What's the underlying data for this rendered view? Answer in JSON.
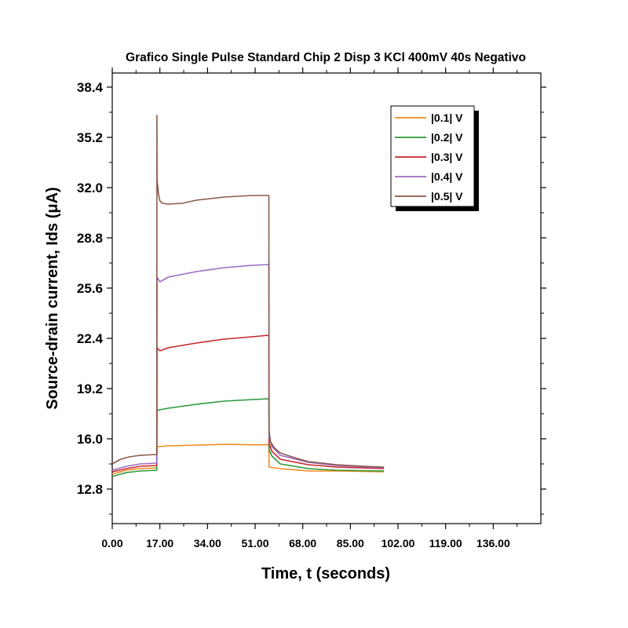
{
  "chart_data": {
    "type": "line",
    "title": "Grafico Single Pulse Standard Chip 2 Disp 3 KCl 400mV 40s Negativo",
    "xlabel": "Time, t (seconds)",
    "ylabel": "Source-drain current, Ids (μA)",
    "xlim": [
      0,
      153
    ],
    "ylim": [
      10.6,
      39.3
    ],
    "x_ticks": [
      0,
      17,
      34,
      51,
      68,
      85,
      102,
      119,
      136
    ],
    "x_tick_labels": [
      "0.00",
      "17.00",
      "34.00",
      "51.00",
      "68.00",
      "85.00",
      "102.00",
      "119.00",
      "136.00"
    ],
    "y_ticks": [
      12.8,
      16.0,
      19.2,
      22.4,
      25.6,
      28.8,
      32.0,
      35.2,
      38.4
    ],
    "y_tick_labels": [
      "12.8",
      "16.0",
      "19.2",
      "22.4",
      "25.6",
      "28.8",
      "32.0",
      "35.2",
      "38.4"
    ],
    "legend_position": "top-right",
    "grid": false,
    "series": [
      {
        "name": "|0.1| V",
        "color": "#f28a1c",
        "x": [
          0,
          5,
          10,
          15.9,
          16.0,
          20,
          30,
          40,
          50,
          55.9,
          56.0,
          60,
          70,
          80,
          97
        ],
        "y": [
          13.75,
          14.0,
          14.1,
          14.15,
          15.5,
          15.55,
          15.6,
          15.65,
          15.62,
          15.62,
          14.2,
          14.1,
          13.95,
          13.95,
          13.9
        ]
      },
      {
        "name": "|0.2| V",
        "color": "#2a9a3a",
        "x": [
          0,
          5,
          10,
          15.9,
          16.0,
          17,
          20,
          30,
          40,
          50,
          55.9,
          56.0,
          57,
          60,
          70,
          80,
          97
        ],
        "y": [
          13.6,
          13.85,
          13.95,
          14.0,
          17.8,
          17.85,
          17.95,
          18.2,
          18.4,
          18.5,
          18.55,
          15.3,
          14.9,
          14.4,
          14.1,
          14.0,
          13.95
        ]
      },
      {
        "name": "|0.3| V",
        "color": "#c8252b",
        "x": [
          0,
          5,
          10,
          15.9,
          16.0,
          17,
          20,
          30,
          40,
          50,
          55.9,
          56.0,
          57,
          60,
          70,
          80,
          97
        ],
        "y": [
          13.9,
          14.1,
          14.25,
          14.3,
          21.8,
          21.6,
          21.8,
          22.1,
          22.35,
          22.5,
          22.6,
          15.7,
          15.2,
          14.7,
          14.35,
          14.2,
          14.1
        ]
      },
      {
        "name": "|0.4| V",
        "color": "#9d6ac4",
        "x": [
          0,
          5,
          10,
          15.9,
          16.0,
          17,
          20,
          30,
          40,
          50,
          55.9,
          56.0,
          57,
          60,
          70,
          80,
          97
        ],
        "y": [
          14.0,
          14.25,
          14.4,
          14.45,
          26.3,
          26.0,
          26.3,
          26.65,
          26.9,
          27.05,
          27.1,
          16.1,
          15.5,
          14.95,
          14.5,
          14.3,
          14.15
        ]
      },
      {
        "name": "|0.5| V",
        "color": "#8b5a4a",
        "x": [
          0,
          3,
          6,
          10,
          15.9,
          15.95,
          16.0,
          16.5,
          17,
          18,
          20,
          25,
          30,
          40,
          50,
          55.9,
          56.0,
          56.5,
          58,
          60,
          65,
          70,
          80,
          90,
          97
        ],
        "y": [
          14.4,
          14.7,
          14.85,
          14.95,
          15.0,
          36.6,
          32.5,
          31.6,
          31.15,
          31.0,
          30.95,
          31.0,
          31.2,
          31.4,
          31.5,
          31.5,
          16.5,
          15.8,
          15.4,
          15.1,
          14.8,
          14.55,
          14.35,
          14.25,
          14.2
        ]
      }
    ]
  }
}
